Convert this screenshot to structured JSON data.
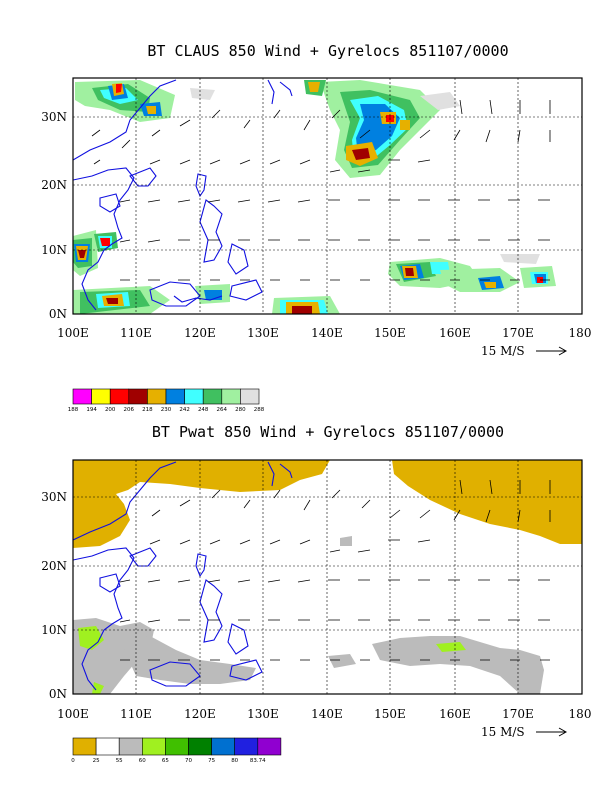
{
  "top_map": {
    "title": "BT CLAUS 850 Wind + Gyrelocs 851107/0000",
    "lat_labels": [
      "30N",
      "20N",
      "10N",
      "0N"
    ],
    "lon_labels": [
      "100E",
      "110E",
      "120E",
      "130E",
      "140E",
      "150E",
      "160E",
      "170E",
      "180"
    ],
    "vector_ref": "15 M/S",
    "colorbar": {
      "colors": [
        "#ff00ff",
        "#ffff00",
        "#ff0000",
        "#a00000",
        "#e6b000",
        "#0080e0",
        "#40ffff",
        "#40c060",
        "#a0f0a0",
        "#e0e0e0"
      ],
      "labels": [
        "188",
        "194",
        "200",
        "206",
        "218",
        "230",
        "242",
        "248",
        "264",
        "280",
        "288"
      ]
    }
  },
  "bottom_map": {
    "title": "BT Pwat 850 Wind + Gyrelocs 851107/0000",
    "lat_labels": [
      "30N",
      "20N",
      "10N",
      "0N"
    ],
    "lon_labels": [
      "100E",
      "110E",
      "120E",
      "130E",
      "140E",
      "150E",
      "160E",
      "170E",
      "180"
    ],
    "vector_ref": "15 M/S",
    "colorbar": {
      "colors": [
        "#e0b000",
        "#ffffff",
        "#bbbbbb",
        "#a0f020",
        "#40c000",
        "#008000",
        "#0070d0",
        "#2020e0",
        "#9000d0"
      ],
      "labels": [
        "0",
        "25",
        "55",
        "60",
        "65",
        "70",
        "75",
        "80",
        "83.74"
      ]
    }
  }
}
